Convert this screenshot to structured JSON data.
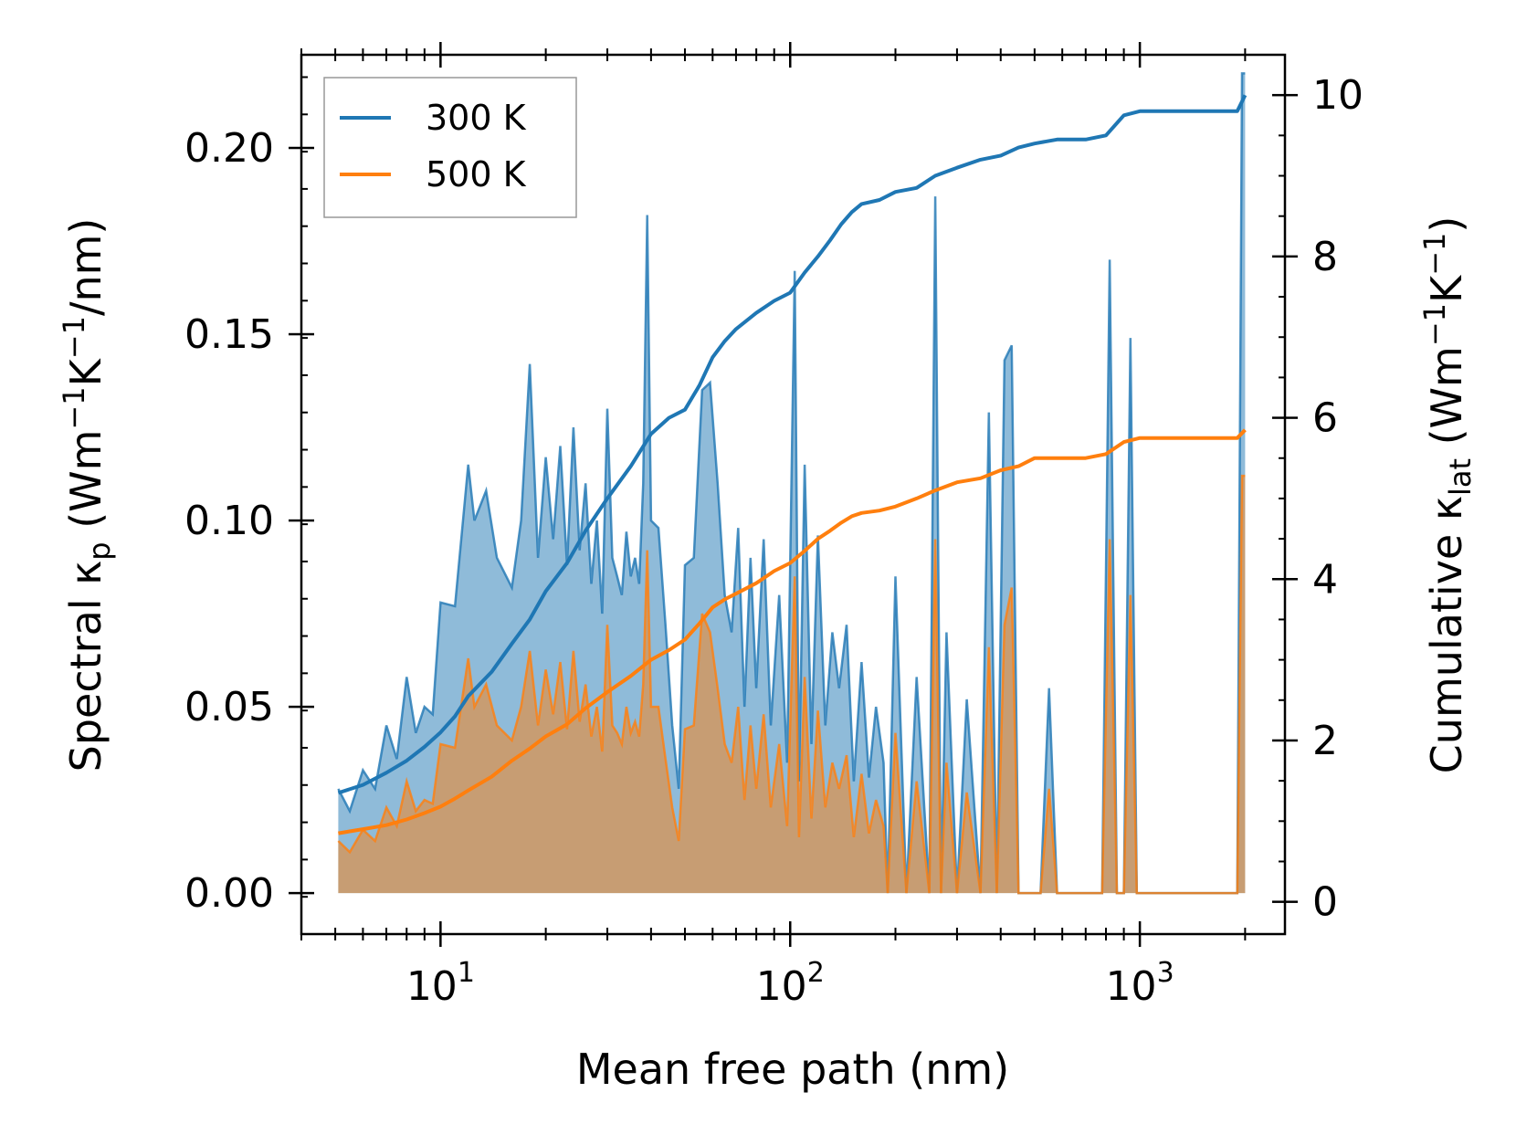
{
  "chart_data": {
    "type": "area",
    "xscale": "log",
    "xlabel": "Mean free path (nm)",
    "ylabel": "Spectral κp (Wm⁻¹K⁻¹/nm)",
    "ylabel_parts": {
      "pre": "Spectral κ",
      "sub": "p",
      "mid": " (Wm",
      "sup1": "−1",
      "k": "K",
      "sup2": "−1",
      "post": "/nm)"
    },
    "y2label": "Cumulative κlat (Wm⁻¹K⁻¹)",
    "y2label_parts": {
      "pre": "Cumulative κ",
      "sub": "lat",
      "mid": " (Wm",
      "sup1": "−1",
      "k": "K",
      "sup2": "−1",
      "post": ")"
    },
    "xlim": [
      4,
      2600
    ],
    "ylim": [
      -0.011,
      0.225
    ],
    "y2lim": [
      -0.4,
      10.5
    ],
    "xticks": [
      10,
      100,
      1000
    ],
    "xtick_labels": [
      {
        "base": "10",
        "exp": "1"
      },
      {
        "base": "10",
        "exp": "2"
      },
      {
        "base": "10",
        "exp": "3"
      }
    ],
    "yticks": [
      0.0,
      0.05,
      0.1,
      0.15,
      0.2
    ],
    "ytick_labels": [
      "0.00",
      "0.05",
      "0.10",
      "0.15",
      "0.20"
    ],
    "y2ticks": [
      0,
      2,
      4,
      6,
      8,
      10
    ],
    "y2tick_labels": [
      "0",
      "2",
      "4",
      "6",
      "8",
      "10"
    ],
    "legend": {
      "position": "top-left",
      "entries": [
        "300 K",
        "500 K"
      ]
    },
    "colors": {
      "300 K": "#1f77b4",
      "500 K": "#ff7f0e"
    },
    "series": [
      {
        "name": "300 K",
        "kind": "spectral",
        "x": [
          5.1,
          5.5,
          6.0,
          6.5,
          7.0,
          7.5,
          8.0,
          8.5,
          9.0,
          9.5,
          10.0,
          11.0,
          12.0,
          12.5,
          13.5,
          14.5,
          16.0,
          17.0,
          18.0,
          19.0,
          20.0,
          21.0,
          22.0,
          23.0,
          24.0,
          25.0,
          26.0,
          27.0,
          28.0,
          29.0,
          30.0,
          31.0,
          32.0,
          33.0,
          34.0,
          35.0,
          36.0,
          37.0,
          38.0,
          39.0,
          40.0,
          42.0,
          44.0,
          46.0,
          48.0,
          50.0,
          53.0,
          56.0,
          59.0,
          62.0,
          65.0,
          68.0,
          71.0,
          74.0,
          77.0,
          80.0,
          84.0,
          88.0,
          93.0,
          98.0,
          103.0,
          106.0,
          110.0,
          115.0,
          120.0,
          126.0,
          132.0,
          138.0,
          145.0,
          152.0,
          160.0,
          168.0,
          176.0,
          185.0,
          190.0,
          200.0,
          215.0,
          230.0,
          250.0,
          260.0,
          270.0,
          280.0,
          300.0,
          320.0,
          350.0,
          370.0,
          390.0,
          410.0,
          430.0,
          450.0,
          480.0,
          520.0,
          550.0,
          580.0,
          620.0,
          700.0,
          780.0,
          820.0,
          860.0,
          900.0,
          940.0,
          980.0,
          1100.0,
          1500.0,
          1900.0,
          1960.0,
          2000.0
        ],
        "values": [
          0.028,
          0.022,
          0.033,
          0.028,
          0.045,
          0.036,
          0.058,
          0.043,
          0.05,
          0.048,
          0.078,
          0.077,
          0.115,
          0.1,
          0.108,
          0.09,
          0.082,
          0.1,
          0.142,
          0.09,
          0.117,
          0.095,
          0.12,
          0.088,
          0.125,
          0.092,
          0.11,
          0.083,
          0.1,
          0.075,
          0.13,
          0.09,
          0.085,
          0.08,
          0.097,
          0.085,
          0.09,
          0.083,
          0.11,
          0.182,
          0.1,
          0.098,
          0.072,
          0.045,
          0.028,
          0.088,
          0.09,
          0.135,
          0.137,
          0.11,
          0.08,
          0.07,
          0.098,
          0.05,
          0.09,
          0.055,
          0.095,
          0.045,
          0.08,
          0.035,
          0.167,
          0.03,
          0.115,
          0.04,
          0.096,
          0.045,
          0.07,
          0.055,
          0.072,
          0.03,
          0.062,
          0.031,
          0.05,
          0.035,
          0.0,
          0.085,
          0.0,
          0.058,
          0.0,
          0.187,
          0.0,
          0.07,
          0.0,
          0.052,
          0.0,
          0.129,
          0.0,
          0.143,
          0.147,
          0.0,
          0.0,
          0.0,
          0.055,
          0.0,
          0.0,
          0.0,
          0.0,
          0.17,
          0.0,
          0.0,
          0.149,
          0.0,
          0.0,
          0.0,
          0.0,
          0.22,
          0.22
        ]
      },
      {
        "name": "500 K",
        "kind": "spectral",
        "x": [
          5.1,
          5.5,
          6.0,
          6.5,
          7.0,
          7.5,
          8.0,
          8.5,
          9.0,
          9.5,
          10.0,
          11.0,
          12.0,
          12.5,
          13.5,
          14.5,
          16.0,
          17.0,
          18.0,
          19.0,
          20.0,
          21.0,
          22.0,
          23.0,
          24.0,
          25.0,
          26.0,
          27.0,
          28.0,
          29.0,
          30.0,
          31.0,
          32.0,
          33.0,
          34.0,
          35.0,
          36.0,
          37.0,
          38.0,
          39.0,
          40.0,
          42.0,
          44.0,
          46.0,
          48.0,
          50.0,
          53.0,
          56.0,
          59.0,
          62.0,
          65.0,
          68.0,
          71.0,
          74.0,
          77.0,
          80.0,
          84.0,
          88.0,
          93.0,
          98.0,
          103.0,
          106.0,
          110.0,
          115.0,
          120.0,
          126.0,
          132.0,
          138.0,
          145.0,
          152.0,
          160.0,
          168.0,
          176.0,
          185.0,
          190.0,
          200.0,
          215.0,
          230.0,
          250.0,
          260.0,
          270.0,
          280.0,
          300.0,
          320.0,
          350.0,
          370.0,
          390.0,
          410.0,
          430.0,
          450.0,
          480.0,
          520.0,
          550.0,
          580.0,
          620.0,
          700.0,
          780.0,
          820.0,
          860.0,
          900.0,
          940.0,
          980.0,
          1100.0,
          1500.0,
          1900.0,
          1960.0,
          2000.0
        ],
        "values": [
          0.014,
          0.011,
          0.017,
          0.014,
          0.023,
          0.018,
          0.03,
          0.022,
          0.025,
          0.024,
          0.04,
          0.039,
          0.063,
          0.05,
          0.056,
          0.045,
          0.041,
          0.05,
          0.065,
          0.045,
          0.06,
          0.048,
          0.062,
          0.044,
          0.065,
          0.046,
          0.056,
          0.042,
          0.05,
          0.038,
          0.072,
          0.045,
          0.043,
          0.04,
          0.05,
          0.043,
          0.046,
          0.042,
          0.056,
          0.092,
          0.05,
          0.05,
          0.036,
          0.023,
          0.014,
          0.044,
          0.045,
          0.075,
          0.07,
          0.055,
          0.04,
          0.035,
          0.05,
          0.025,
          0.045,
          0.028,
          0.048,
          0.023,
          0.04,
          0.018,
          0.085,
          0.015,
          0.058,
          0.02,
          0.049,
          0.023,
          0.035,
          0.028,
          0.037,
          0.015,
          0.032,
          0.016,
          0.025,
          0.018,
          0.0,
          0.043,
          0.0,
          0.03,
          0.0,
          0.095,
          0.0,
          0.035,
          0.0,
          0.027,
          0.0,
          0.066,
          0.0,
          0.072,
          0.082,
          0.0,
          0.0,
          0.0,
          0.028,
          0.0,
          0.0,
          0.0,
          0.0,
          0.095,
          0.0,
          0.0,
          0.08,
          0.0,
          0.0,
          0.0,
          0.0,
          0.112,
          0.112
        ]
      },
      {
        "name": "300 K",
        "kind": "cumulative",
        "x": [
          5.1,
          6.0,
          7.0,
          8.0,
          9.0,
          10.0,
          11.0,
          12.0,
          14.0,
          16.0,
          18.0,
          20.0,
          23.0,
          26.0,
          30.0,
          35.0,
          40.0,
          45.0,
          50.0,
          55.0,
          60.0,
          65.0,
          70.0,
          80.0,
          90.0,
          100.0,
          110.0,
          120.0,
          130.0,
          140.0,
          150.0,
          160.0,
          180.0,
          200.0,
          230.0,
          260.0,
          300.0,
          350.0,
          400.0,
          450.0,
          500.0,
          580.0,
          700.0,
          800.0,
          900.0,
          1000.0,
          1500.0,
          1900.0,
          2000.0
        ],
        "values": [
          1.35,
          1.45,
          1.6,
          1.75,
          1.92,
          2.1,
          2.3,
          2.55,
          2.85,
          3.2,
          3.5,
          3.85,
          4.2,
          4.6,
          5.0,
          5.4,
          5.8,
          6.0,
          6.1,
          6.4,
          6.75,
          6.95,
          7.1,
          7.3,
          7.45,
          7.55,
          7.8,
          8.0,
          8.2,
          8.4,
          8.55,
          8.65,
          8.7,
          8.8,
          8.85,
          9.0,
          9.1,
          9.2,
          9.25,
          9.35,
          9.4,
          9.45,
          9.45,
          9.5,
          9.75,
          9.8,
          9.8,
          9.8,
          10.0
        ]
      },
      {
        "name": "500 K",
        "kind": "cumulative",
        "x": [
          5.1,
          6.0,
          7.0,
          8.0,
          9.0,
          10.0,
          11.0,
          12.0,
          14.0,
          16.0,
          18.0,
          20.0,
          23.0,
          26.0,
          30.0,
          35.0,
          40.0,
          45.0,
          50.0,
          55.0,
          60.0,
          65.0,
          70.0,
          80.0,
          90.0,
          100.0,
          110.0,
          120.0,
          130.0,
          140.0,
          150.0,
          160.0,
          180.0,
          200.0,
          230.0,
          260.0,
          300.0,
          350.0,
          400.0,
          450.0,
          500.0,
          580.0,
          700.0,
          800.0,
          900.0,
          1000.0,
          1500.0,
          1900.0,
          2000.0
        ],
        "values": [
          0.85,
          0.9,
          0.95,
          1.02,
          1.1,
          1.18,
          1.28,
          1.38,
          1.55,
          1.75,
          1.9,
          2.05,
          2.2,
          2.4,
          2.6,
          2.8,
          3.0,
          3.12,
          3.25,
          3.45,
          3.65,
          3.75,
          3.82,
          3.95,
          4.1,
          4.2,
          4.35,
          4.5,
          4.6,
          4.7,
          4.78,
          4.82,
          4.85,
          4.9,
          5.0,
          5.1,
          5.2,
          5.25,
          5.35,
          5.4,
          5.5,
          5.5,
          5.5,
          5.55,
          5.7,
          5.75,
          5.75,
          5.75,
          5.85
        ]
      }
    ]
  }
}
